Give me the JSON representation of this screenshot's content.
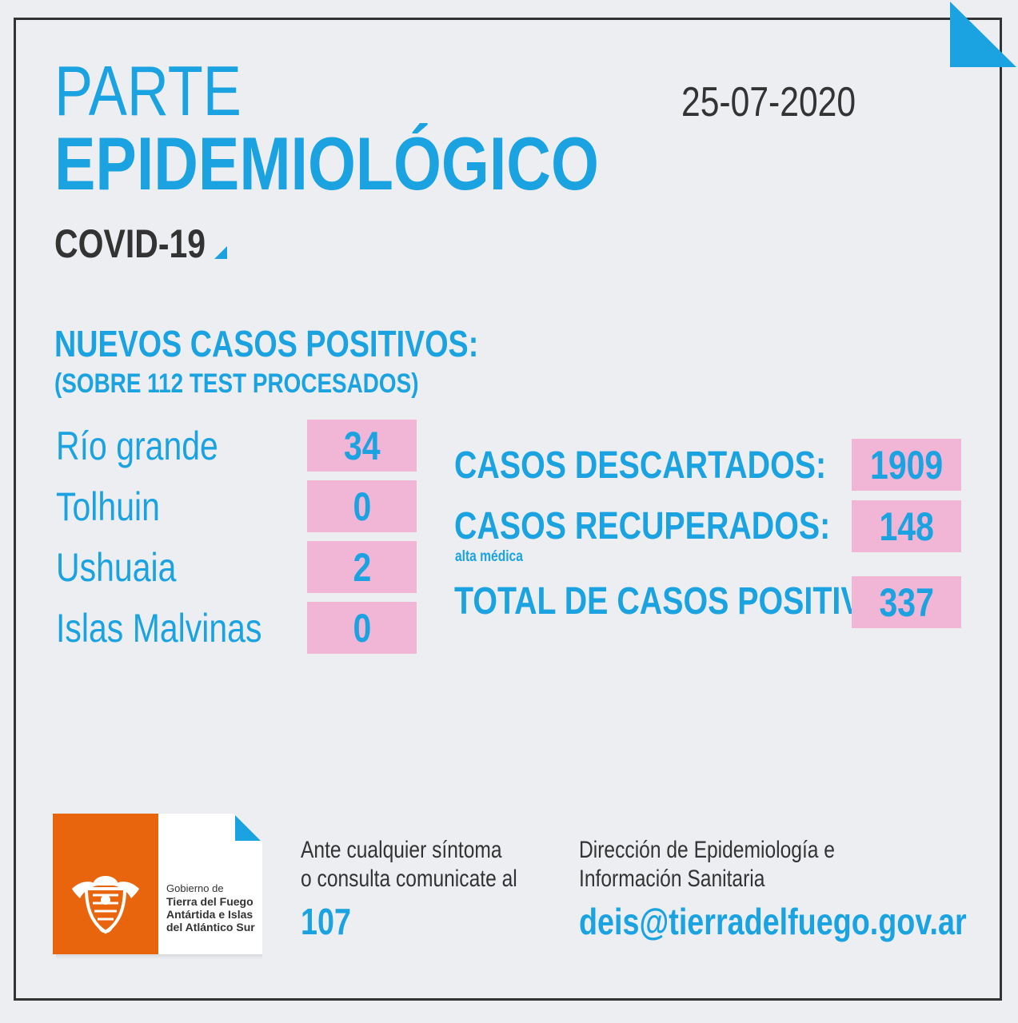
{
  "header": {
    "title_line1": "PARTE",
    "title_line2": "EPIDEMIOLÓGICO",
    "subtitle": "COVID-19",
    "date": "25-07-2020"
  },
  "new_cases": {
    "heading": "NUEVOS CASOS POSITIVOS:",
    "subheading": "(SOBRE 112 TEST PROCESADOS)",
    "locations": [
      {
        "name": "Río grande",
        "value": "34"
      },
      {
        "name": "Tolhuin",
        "value": "0"
      },
      {
        "name": "Ushuaia",
        "value": "2"
      },
      {
        "name": "Islas Malvinas",
        "value": "0"
      }
    ]
  },
  "summary": {
    "discarded_label": "CASOS DESCARTADOS:",
    "discarded_value": "1909",
    "recovered_label": "CASOS RECUPERADOS:",
    "recovered_note": "alta médica",
    "recovered_value": "148",
    "total_label": "TOTAL DE CASOS POSITIVOS",
    "total_value": "337"
  },
  "logo": {
    "line1": "Gobierno de",
    "line2": "Tierra del Fuego",
    "line3": "Antártida e Islas",
    "line4": "del Atlántico Sur",
    "emblem_icon": "coat-of-arms-icon"
  },
  "footer": {
    "contact_line1": "Ante cualquier síntoma",
    "contact_line2": "o consulta comunicate al",
    "phone": "107",
    "dept_line1": "Dirección de Epidemiología e",
    "dept_line2": "Información Sanitaria",
    "email": "deis@tierradelfuego.gov.ar"
  },
  "colors": {
    "accent": "#1aa3e0",
    "value_box": "#f1b5d6",
    "text_dark": "#333333",
    "logo_orange": "#e8650e",
    "background": "#eceef1"
  }
}
